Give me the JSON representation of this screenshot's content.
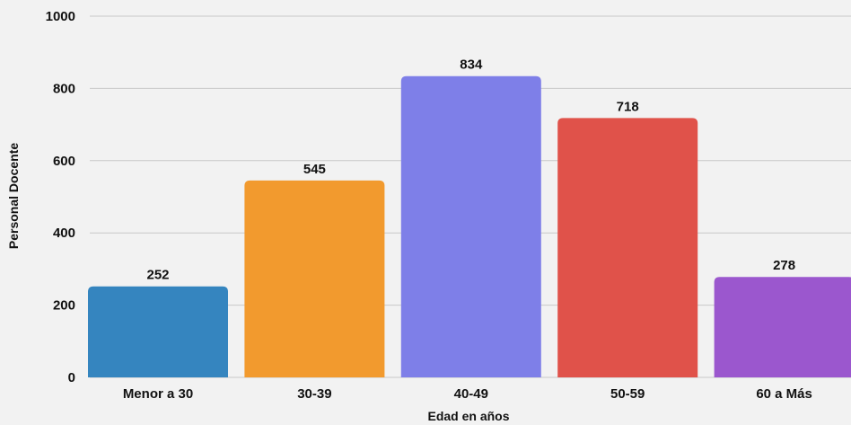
{
  "chart_data": {
    "type": "bar",
    "categories": [
      "Menor a 30",
      "30-39",
      "40-49",
      "50-59",
      "60 a Más"
    ],
    "values": [
      252,
      545,
      834,
      718,
      278
    ],
    "colors": [
      "#3585bf",
      "#f29a2e",
      "#7e7fe8",
      "#e0524a",
      "#9b57ce"
    ],
    "xlabel": "Edad en años",
    "ylabel": "Personal Docente",
    "ylim": [
      0,
      1000
    ],
    "yticks": [
      0,
      200,
      400,
      600,
      800,
      1000
    ],
    "grid": true
  }
}
